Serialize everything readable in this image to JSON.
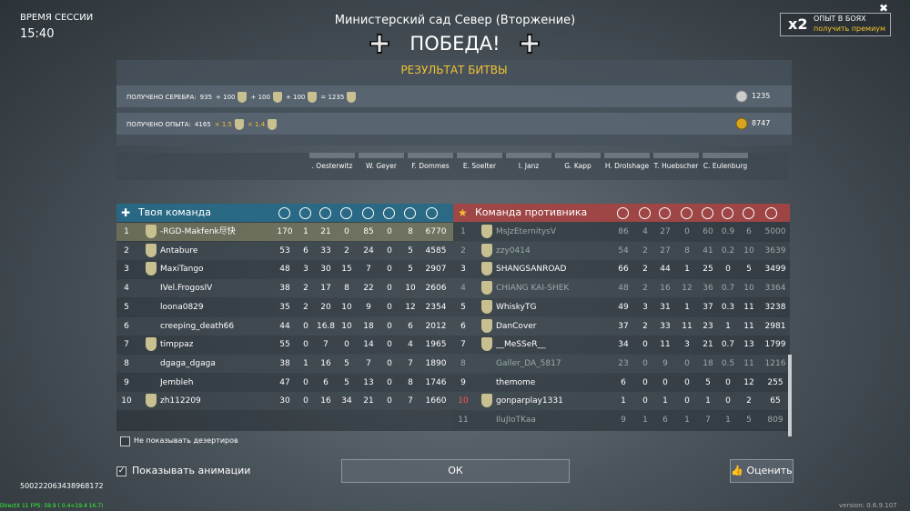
{
  "session": {
    "label": "ВРЕМЯ СЕССИИ",
    "time": "15:40"
  },
  "map_title": "Министерский сад Север (Вторжение)",
  "result": "ПОБЕДА!",
  "bonus": {
    "multiplier": "x2",
    "label": "ОПЫТ В БОЯХ",
    "link": "получить премиум"
  },
  "battle_result": {
    "title": "РЕЗУЛЬТАТ БИТВЫ",
    "silver": {
      "label": "ПОЛУЧЕНО СЕРЕБРА:",
      "tokens": [
        "935",
        "+ 100",
        "+ 100",
        "+ 100",
        "= 1235"
      ],
      "total": "1235"
    },
    "experience": {
      "label": "ПОЛУЧЕНО ОПЫТА:",
      "tokens": [
        "4165",
        "× 1.5",
        "× 1.4"
      ],
      "total": "8747"
    }
  },
  "crew": [
    ". Oesterwitz",
    "W. Geyer",
    "F. Dommes",
    "E. Soelter",
    "I. Janz",
    "G. Kapp",
    "H. Drolshage",
    "T. Huebscher",
    "C. Eulenburg"
  ],
  "your_team": {
    "title": "Твоя команда",
    "rows": [
      [
        1,
        "-RGD-Makfenk尽快",
        170,
        1,
        21,
        0,
        85,
        0,
        8,
        6770
      ],
      [
        2,
        "Antabure",
        53,
        6,
        33,
        2,
        24,
        0,
        5,
        4585
      ],
      [
        3,
        "MaxiTango",
        48,
        3,
        30,
        15,
        7,
        0,
        5,
        2907
      ],
      [
        4,
        "IVel.FrogosIV",
        38,
        2,
        17,
        8,
        22,
        0,
        10,
        2606
      ],
      [
        5,
        "loona0829",
        35,
        2,
        20,
        10,
        9,
        0,
        12,
        2354
      ],
      [
        6,
        "creeping_death66",
        44,
        0,
        16.8,
        10,
        18,
        0,
        6,
        2012
      ],
      [
        7,
        "timppaz",
        55,
        0,
        7,
        0,
        14,
        0,
        4,
        1965
      ],
      [
        8,
        "dgaga_dgaga",
        38,
        1,
        16,
        5,
        7,
        0,
        7,
        1890
      ],
      [
        9,
        "Jembleh",
        47,
        0,
        6,
        5,
        13,
        0,
        8,
        1746
      ],
      [
        10,
        "zh112209",
        30,
        0,
        16,
        34,
        21,
        0,
        7,
        1660
      ]
    ]
  },
  "enemy_team": {
    "title": "Команда противника",
    "rows": [
      [
        1,
        "MsJzEternitysV",
        86,
        4,
        27,
        0,
        60,
        0.9,
        6,
        5000
      ],
      [
        2,
        "zzy0414",
        54,
        2,
        27,
        8,
        41,
        0.2,
        10,
        3639
      ],
      [
        3,
        "SHANGSANROAD",
        66,
        2,
        44,
        1,
        25,
        0,
        5,
        3499
      ],
      [
        4,
        "CHIANG KAI-SHEK",
        48,
        2,
        16,
        12,
        36,
        0.7,
        10,
        3364
      ],
      [
        5,
        "WhiskyTG",
        49,
        3,
        31,
        1,
        37,
        0.3,
        11,
        3238
      ],
      [
        6,
        "DanCover",
        37,
        2,
        33,
        11,
        23,
        1,
        11,
        2981
      ],
      [
        7,
        "__MeSSeR__",
        34,
        0,
        11,
        3,
        21,
        0.7,
        13,
        1799
      ],
      [
        8,
        "Galler_DA_5817",
        23,
        0,
        9,
        0,
        18,
        0.5,
        11,
        1216
      ],
      [
        9,
        "themome",
        6,
        0,
        0,
        0,
        5,
        0,
        12,
        255
      ],
      [
        10,
        "gonparplay1331",
        1,
        0,
        1,
        0,
        1,
        0,
        2,
        65
      ],
      [
        11,
        "IluJIoTKaa",
        9,
        1,
        6,
        1,
        7,
        1,
        5,
        809
      ]
    ]
  },
  "options": {
    "hide_deserters": "Не показывать дезертиров",
    "show_animations": "Показывать анимации"
  },
  "buttons": {
    "ok": "ОК",
    "rate": "Оценить"
  },
  "battle_id": "500222063438968172",
  "fps": "DirectX 11 FPS: 59.9 ( 0.4<19.4 16.7)",
  "version": "version: 0.6.9.107"
}
